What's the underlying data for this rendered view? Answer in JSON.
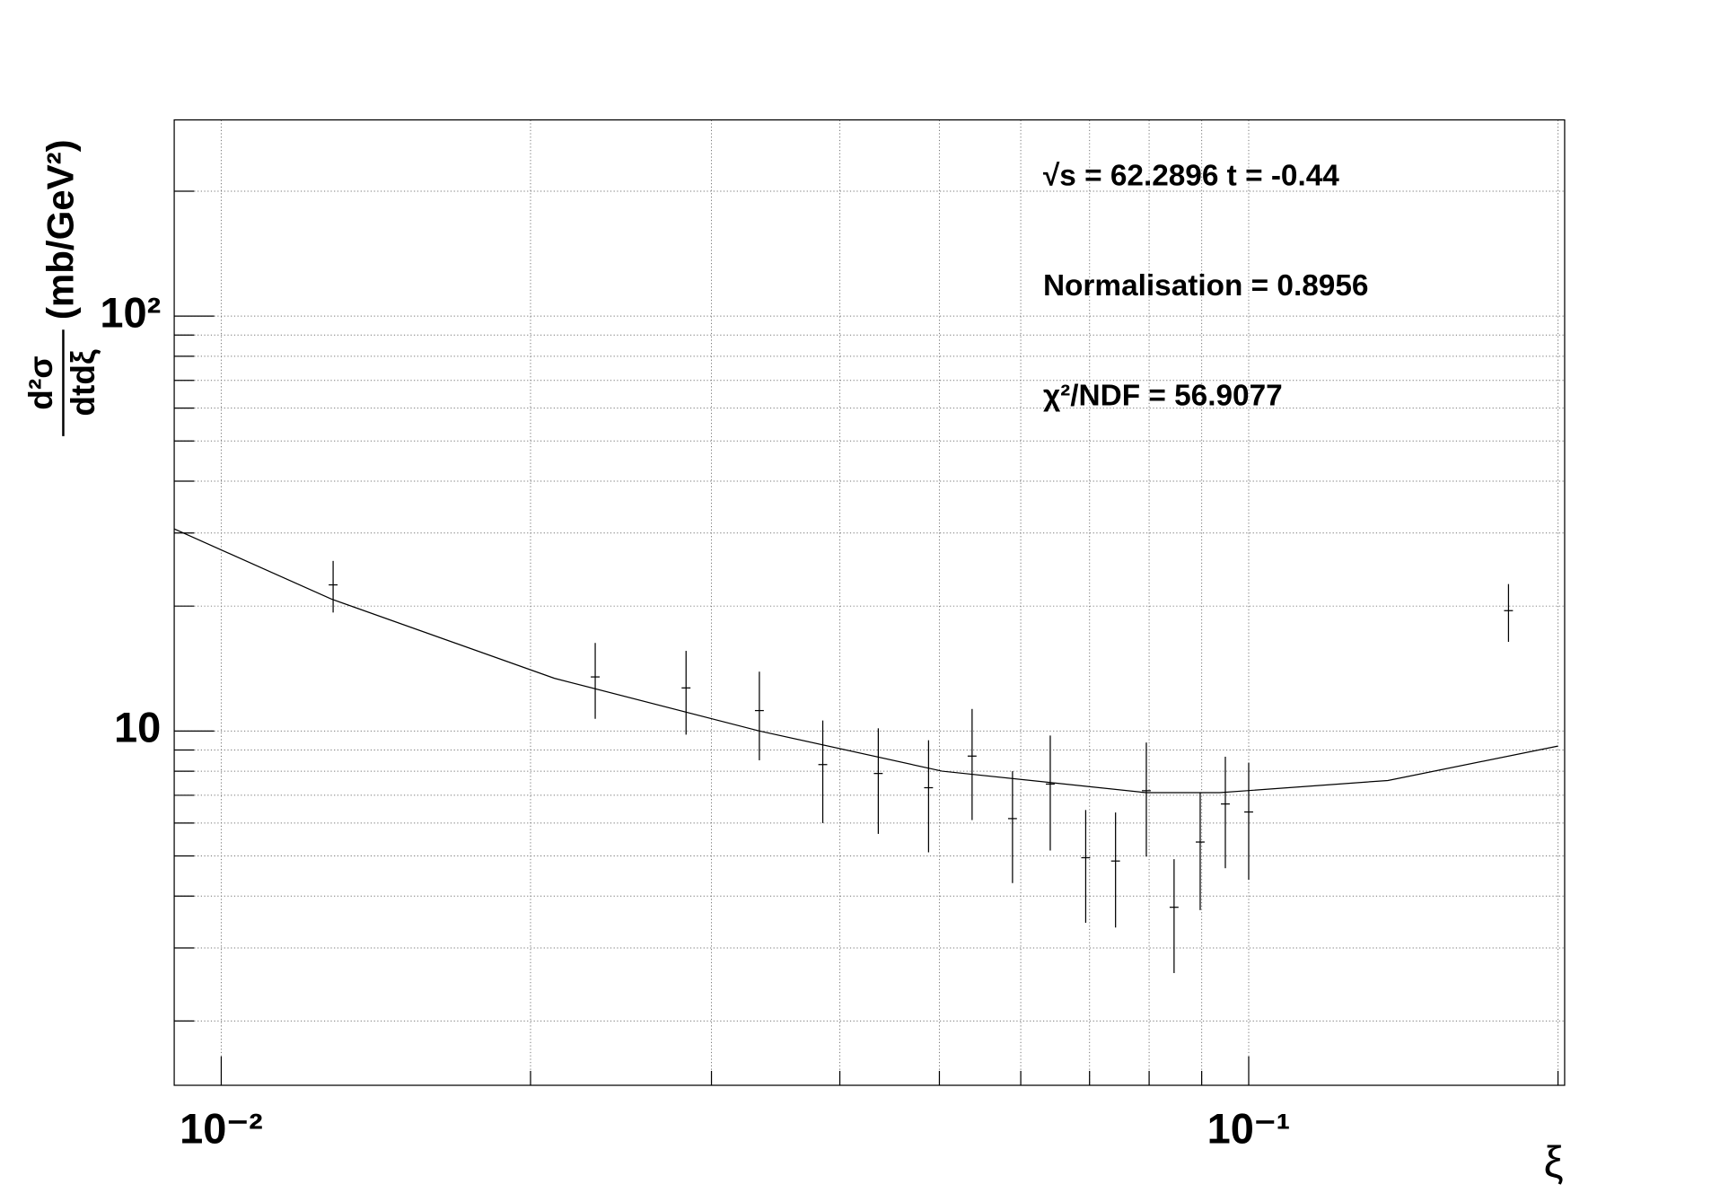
{
  "chart_data": {
    "type": "scatter",
    "xlabel": "ξ",
    "ylabel_numerator": "d²σ",
    "ylabel_denominator": "dtdξ",
    "ylabel_unit": "(mb/GeV²)",
    "annotations": [
      "√s = 62.2896 t = -0.44",
      "Normalisation = 0.8956",
      "χ²/NDF = 56.9077"
    ],
    "xscale": "log",
    "yscale": "log",
    "grid": true,
    "xlim": [
      0.009,
      0.203
    ],
    "ylim": [
      1.4,
      297
    ],
    "xticks": [
      {
        "value": 0.01,
        "label": "10⁻²"
      },
      {
        "value": 0.1,
        "label": "10⁻¹"
      }
    ],
    "yticks": [
      10,
      {
        "value": 100,
        "label": "10²"
      }
    ],
    "xminor_ticks": [
      0.02,
      0.03,
      0.04,
      0.05,
      0.06,
      0.07,
      0.08,
      0.09,
      0.2
    ],
    "yminor_ticks": [
      2,
      3,
      4,
      5,
      6,
      7,
      8,
      9,
      20,
      30,
      40,
      50,
      60,
      70,
      80,
      90,
      200
    ],
    "series": [
      {
        "type": "errorbar",
        "color": "#000000",
        "x": [
          0.01285,
          0.02312,
          0.02834,
          0.0334,
          0.0385,
          0.0436,
          0.0488,
          0.0538,
          0.0589,
          0.0641,
          0.0694,
          0.0742,
          0.0795,
          0.0846,
          0.0897,
          0.0949,
          0.1,
          0.179
        ],
        "values": [
          22.5,
          13.5,
          12.7,
          11.2,
          8.3,
          7.9,
          7.3,
          8.7,
          6.15,
          7.45,
          4.95,
          4.86,
          7.18,
          3.76,
          5.4,
          6.67,
          6.38,
          19.5
        ],
        "errors": [
          3.2,
          2.8,
          2.9,
          2.7,
          2.3,
          2.25,
          2.2,
          2.6,
          1.85,
          2.3,
          1.5,
          1.5,
          2.2,
          1.15,
          1.7,
          2.0,
          2.0,
          3.1
        ]
      },
      {
        "type": "line",
        "color": "#000000",
        "x": [
          0.009,
          0.0128,
          0.0211,
          0.0334,
          0.0503,
          0.0795,
          0.0937,
          0.1366,
          0.2
        ],
        "values": [
          30.7,
          20.8,
          13.4,
          10.0,
          8.0,
          7.1,
          7.1,
          7.6,
          9.2
        ]
      }
    ]
  }
}
